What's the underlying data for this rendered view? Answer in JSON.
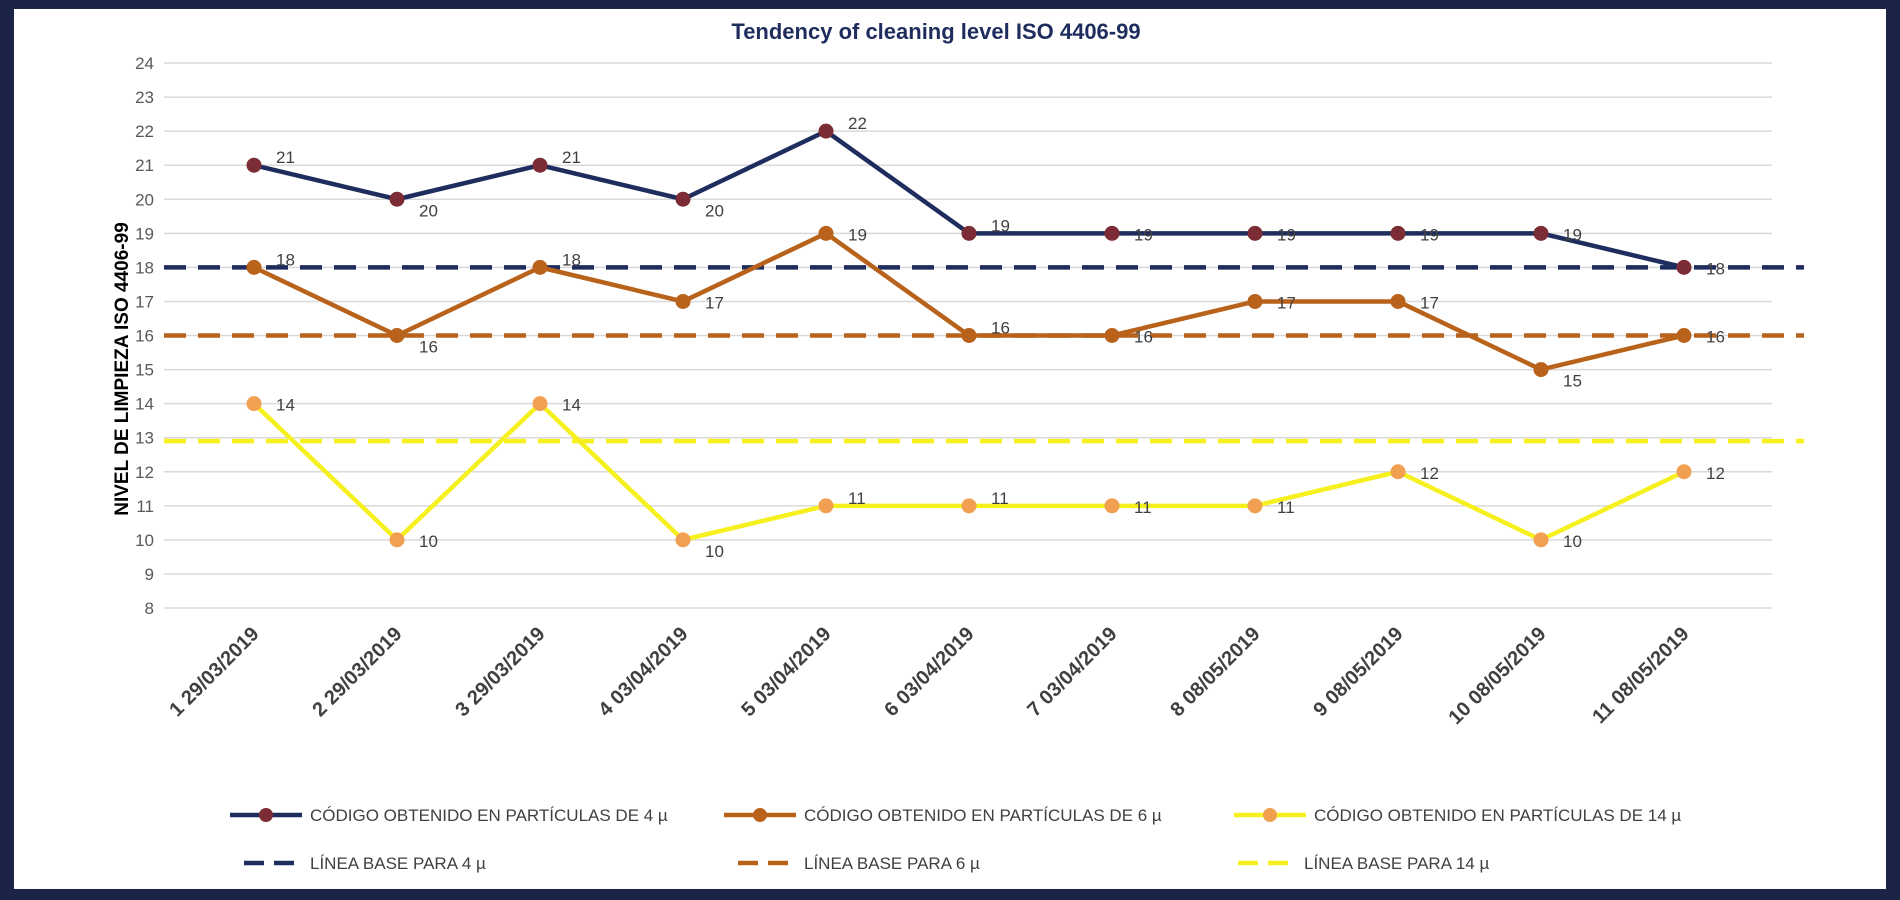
{
  "chart_data": {
    "type": "line",
    "title": "Tendency of cleaning level ISO 4406-99",
    "ylabel": "NIVEL DE LIMPIEZA ISO 4406-99",
    "xlabel": "",
    "ylim": [
      8,
      24
    ],
    "yticks": [
      8,
      9,
      10,
      11,
      12,
      13,
      14,
      15,
      16,
      17,
      18,
      19,
      20,
      21,
      22,
      23,
      24
    ],
    "grid": true,
    "legend_position": "bottom",
    "categories": [
      "1 29/03/2019",
      "2 29/03/2019",
      "3 29/03/2019",
      "4 03/04/2019",
      "5 03/04/2019",
      "6 03/04/2019",
      "7 03/04/2019",
      "8 08/05/2019",
      "9 08/05/2019",
      "10 08/05/2019",
      "11 08/05/2019"
    ],
    "series": [
      {
        "name": "CÓDIGO OBTENIDO EN PARTÍCULAS DE 4 µ",
        "values": [
          21,
          20,
          21,
          20,
          22,
          19,
          19,
          19,
          19,
          19,
          18
        ],
        "color": "#1f2d5e",
        "marker_color": "#7b2c34",
        "label_dy": [
          "up",
          "down",
          "up",
          "down",
          "up",
          "up",
          "same",
          "same",
          "same",
          "same",
          "same"
        ]
      },
      {
        "name": "CÓDIGO OBTENIDO EN PARTÍCULAS DE 6 µ",
        "values": [
          18,
          16,
          18,
          17,
          19,
          16,
          16,
          17,
          17,
          15,
          16
        ],
        "color": "#b8621b",
        "marker_color": "#b8621b",
        "label_dy": [
          "up",
          "down",
          "up",
          "same",
          "same",
          "up",
          "same",
          "same",
          "same",
          "down",
          "same"
        ]
      },
      {
        "name": "CÓDIGO OBTENIDO EN PARTÍCULAS DE 14 µ",
        "values": [
          14,
          10,
          14,
          10,
          11,
          11,
          11,
          11,
          12,
          10,
          12
        ],
        "color": "#f5f01e",
        "marker_color": "#f0a050",
        "label_dy": [
          "same",
          "same",
          "same",
          "down",
          "up",
          "up",
          "same",
          "same",
          "same",
          "same",
          "same"
        ]
      }
    ],
    "baselines": [
      {
        "name": "LÍNEA BASE PARA 4 µ",
        "value": 18,
        "color": "#1f2d5e"
      },
      {
        "name": "LÍNEA BASE PARA 6 µ",
        "value": 16,
        "color": "#b8621b"
      },
      {
        "name": "LÍNEA BASE PARA 14 µ",
        "value": 12.9,
        "color": "#f5f01e"
      }
    ]
  }
}
